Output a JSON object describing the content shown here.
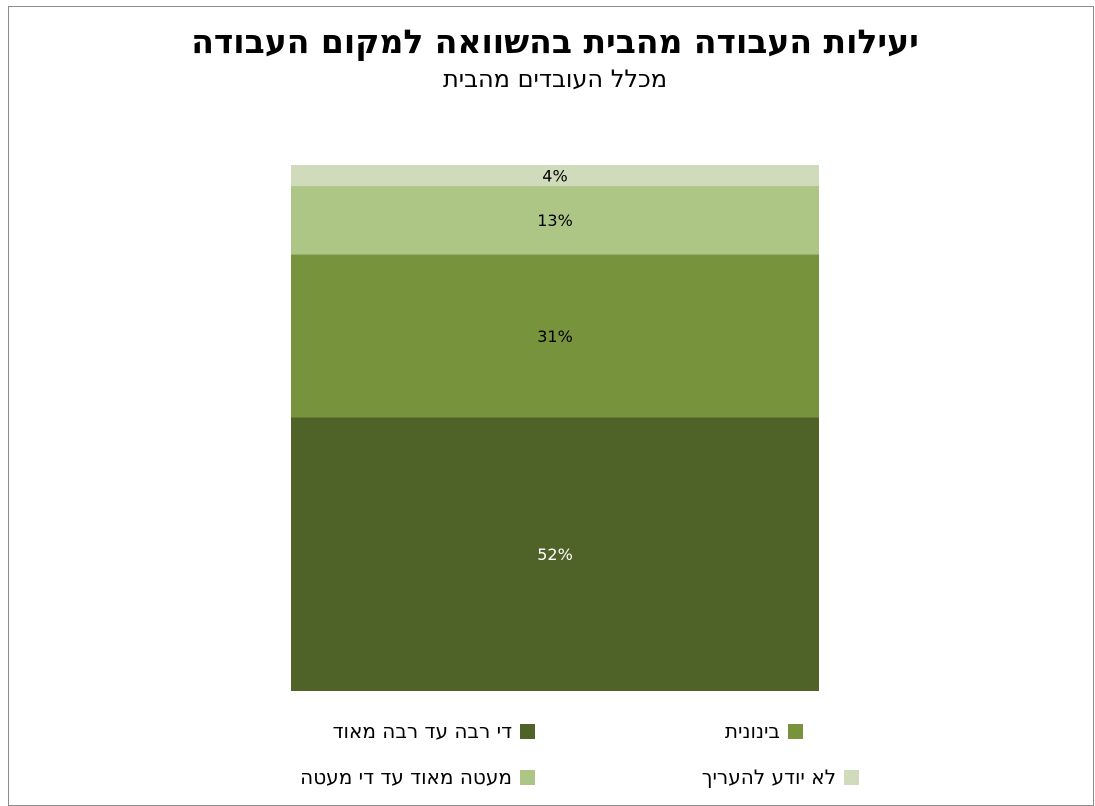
{
  "chart_data": {
    "type": "bar",
    "stacked": true,
    "title": "יעילות העבודה מהבית בהשוואה למקום העבודה",
    "subtitle": "מכלל העובדים מהבית",
    "categories": [
      ""
    ],
    "series": [
      {
        "name": "די רבה עד רבה מאוד",
        "values": [
          52
        ],
        "label": "52%",
        "color": "#4f6228",
        "label_color": "#ffffff"
      },
      {
        "name": "בינונית",
        "values": [
          31
        ],
        "label": "31%",
        "color": "#77933c",
        "label_color": "#000000"
      },
      {
        "name": "מעטה מאוד עד די מעטה",
        "values": [
          13
        ],
        "label": "13%",
        "color": "#adc686",
        "label_color": "#000000"
      },
      {
        "name": "לא יודע להעריך",
        "values": [
          4
        ],
        "label": "4%",
        "color": "#cfdbbb",
        "label_color": "#000000"
      }
    ],
    "legend_position": "bottom",
    "grid": false
  }
}
